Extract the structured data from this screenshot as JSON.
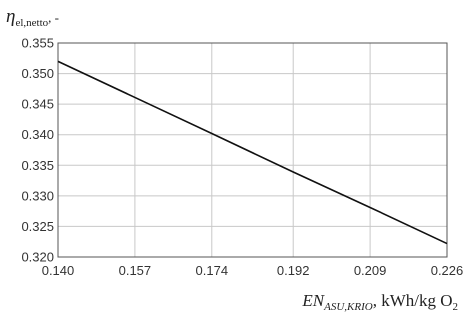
{
  "chart_data": {
    "type": "line",
    "x": [
      0.14,
      0.157,
      0.174,
      0.192,
      0.209,
      0.226
    ],
    "series": [
      {
        "values": [
          0.352,
          0.3461,
          0.3402,
          0.3339,
          0.3281,
          0.3222
        ]
      }
    ],
    "xlim": [
      0.14,
      0.226
    ],
    "ylim": [
      0.32,
      0.355
    ],
    "x_ticks": [
      "0.140",
      "0.157",
      "0.174",
      "0.192",
      "0.209",
      "0.226"
    ],
    "y_ticks": [
      "0.320",
      "0.325",
      "0.330",
      "0.335",
      "0.340",
      "0.345",
      "0.350",
      "0.355"
    ],
    "ylabel": {
      "symbol": "η",
      "subscript": "el,netto",
      "unit": ", -"
    },
    "xlabel": {
      "symbol": "EN",
      "subscript": "ASU,KRIO",
      "unit": ", kWh/kg O",
      "unit_subscript": "2"
    },
    "grid": true,
    "legend": "none",
    "colors": {
      "line": "#111111",
      "grid": "#c8c8c8",
      "frame": "#555555",
      "text": "#333333"
    }
  }
}
